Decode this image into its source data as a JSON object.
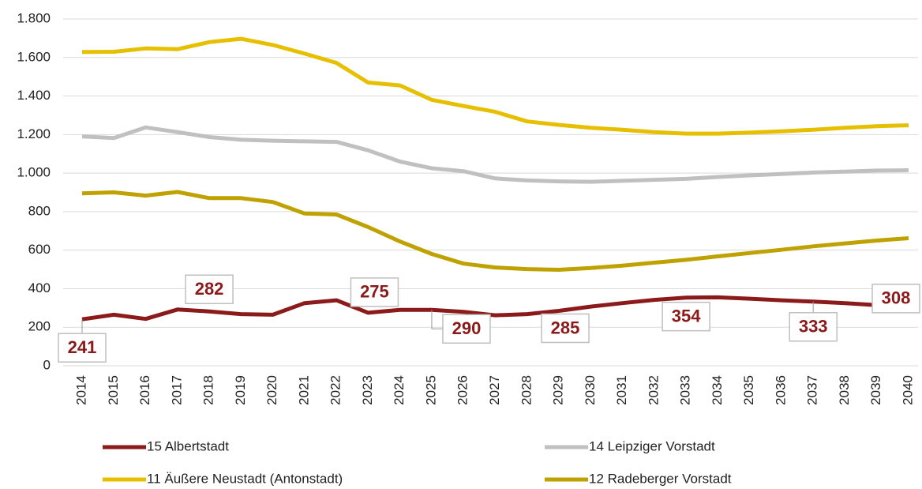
{
  "chart_data": {
    "type": "line",
    "categories": [
      "2014",
      "2015",
      "2016",
      "2017",
      "2018",
      "2019",
      "2020",
      "2021",
      "2022",
      "2023",
      "2024",
      "2025",
      "2026",
      "2027",
      "2028",
      "2029",
      "2030",
      "2031",
      "2032",
      "2033",
      "2034",
      "2035",
      "2036",
      "2037",
      "2038",
      "2039",
      "2040"
    ],
    "series": [
      {
        "name": "15 Albertstadt",
        "color": "#8b1a1a",
        "values": [
          241,
          265,
          243,
          292,
          282,
          268,
          265,
          325,
          340,
          275,
          290,
          290,
          280,
          262,
          268,
          285,
          307,
          325,
          342,
          354,
          355,
          348,
          340,
          333,
          325,
          315,
          308
        ],
        "value_labels": [
          "241",
          null,
          null,
          null,
          "282",
          null,
          null,
          null,
          null,
          "275",
          null,
          "290",
          null,
          null,
          null,
          "285",
          null,
          null,
          null,
          "354",
          null,
          null,
          null,
          "333",
          null,
          null,
          "308"
        ]
      },
      {
        "name": "14 Leipziger Vorstadt",
        "color": "#c0c0c0",
        "values": [
          1190,
          1182,
          1237,
          1213,
          1187,
          1173,
          1168,
          1165,
          1162,
          1118,
          1060,
          1025,
          1010,
          972,
          962,
          957,
          955,
          960,
          965,
          970,
          980,
          988,
          995,
          1003,
          1008,
          1013,
          1015
        ]
      },
      {
        "name": "11 Äußere Neustadt (Antonstadt)",
        "color": "#e6c000",
        "values": [
          1628,
          1630,
          1647,
          1643,
          1680,
          1697,
          1665,
          1620,
          1572,
          1470,
          1455,
          1380,
          1348,
          1318,
          1268,
          1250,
          1235,
          1225,
          1213,
          1205,
          1205,
          1210,
          1217,
          1225,
          1235,
          1243,
          1248
        ]
      },
      {
        "name": "12 Radeberger Vorstadt",
        "color": "#bfa100",
        "values": [
          895,
          900,
          883,
          902,
          870,
          870,
          850,
          790,
          785,
          720,
          645,
          580,
          530,
          510,
          502,
          498,
          507,
          520,
          535,
          550,
          568,
          585,
          602,
          620,
          635,
          650,
          662
        ]
      }
    ],
    "ylim": [
      0,
      1800
    ],
    "yticks": [
      0,
      200,
      400,
      600,
      800,
      {
        "value": 1000,
        "label": "1.000"
      },
      {
        "value": 1200,
        "label": "1.200"
      },
      {
        "value": 1400,
        "label": "1.400"
      },
      {
        "value": 1600,
        "label": "1.600"
      },
      {
        "value": 1800,
        "label": "1.800"
      }
    ],
    "grid": true
  }
}
